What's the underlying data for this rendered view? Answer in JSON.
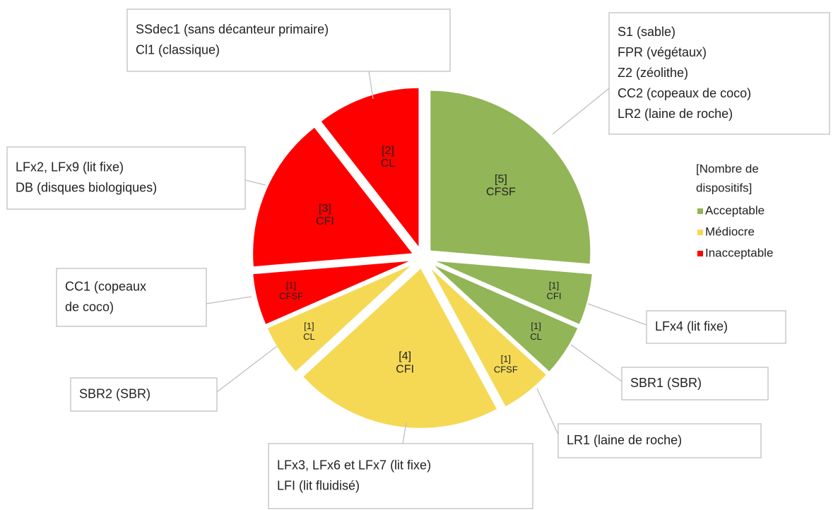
{
  "chart_data": {
    "type": "pie",
    "categories": [
      "CFSF",
      "CFI",
      "CL",
      "CFSF",
      "CFI",
      "CL",
      "CFSF",
      "CFI",
      "CL"
    ],
    "values": [
      5,
      1,
      1,
      1,
      4,
      1,
      1,
      3,
      2
    ],
    "value_labels": [
      "[5]",
      "[1]",
      "[1]",
      "[1]",
      "[4]",
      "[1]",
      "[1]",
      "[3]",
      "[2]"
    ],
    "colors": [
      "#92b558",
      "#92b558",
      "#92b558",
      "#f5d955",
      "#f5d955",
      "#f5d955",
      "#ff0000",
      "#ff0000",
      "#ff0000"
    ],
    "callouts": [
      [
        "S1 (sable)",
        "FPR (végétaux)",
        "Z2 (zéolithe)",
        "CC2 (copeaux de coco)",
        "LR2 (laine de roche)"
      ],
      [
        "LFx4 (lit fixe)"
      ],
      [
        "SBR1 (SBR)"
      ],
      [
        "LR1 (laine de roche)"
      ],
      [
        "LFx3, LFx6 et LFx7 (lit fixe)",
        "LFI (lit fluidisé)"
      ],
      [
        "SBR2 (SBR)"
      ],
      [
        "CC1 (copeaux",
        "de coco)"
      ],
      [
        "LFx2, LFx9 (lit fixe)",
        "DB (disques biologiques)"
      ],
      [
        "SSdec1 (sans décanteur primaire)",
        "Cl1 (classique)"
      ]
    ],
    "legend_title": [
      "[Nombre de",
      "dispositifs]"
    ],
    "legend": [
      {
        "name": "Acceptable",
        "color": "#92b558"
      },
      {
        "name": "Médiocre",
        "color": "#f5d955"
      },
      {
        "name": "Inacceptable",
        "color": "#ff0000"
      }
    ]
  }
}
